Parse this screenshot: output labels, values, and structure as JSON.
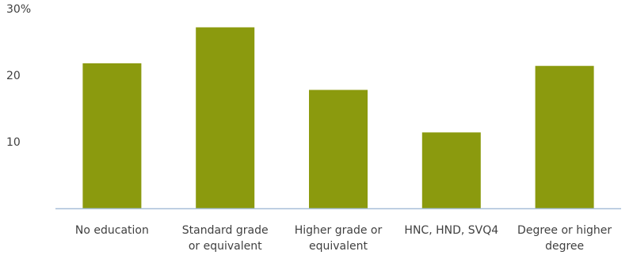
{
  "chart_data": {
    "type": "bar",
    "title": "",
    "xlabel": "",
    "ylabel": "",
    "categories": [
      [
        "No education"
      ],
      [
        "Standard grade",
        "or equivalent"
      ],
      [
        "Higher grade or",
        "equivalent"
      ],
      [
        "HNC, HND, SVQ4"
      ],
      [
        "Degree or higher",
        "degree"
      ]
    ],
    "values": [
      21.8,
      27.2,
      17.8,
      11.4,
      21.4
    ],
    "ylim": [
      0,
      30
    ],
    "yticks": [
      {
        "value": 10,
        "label": "10"
      },
      {
        "value": 20,
        "label": "20"
      },
      {
        "value": 30,
        "label": "30%"
      }
    ],
    "grid": false,
    "legend": "none",
    "bar_color": "#8b9a0e",
    "axis_color": "#a8bfd9",
    "text_color": "#404040"
  }
}
